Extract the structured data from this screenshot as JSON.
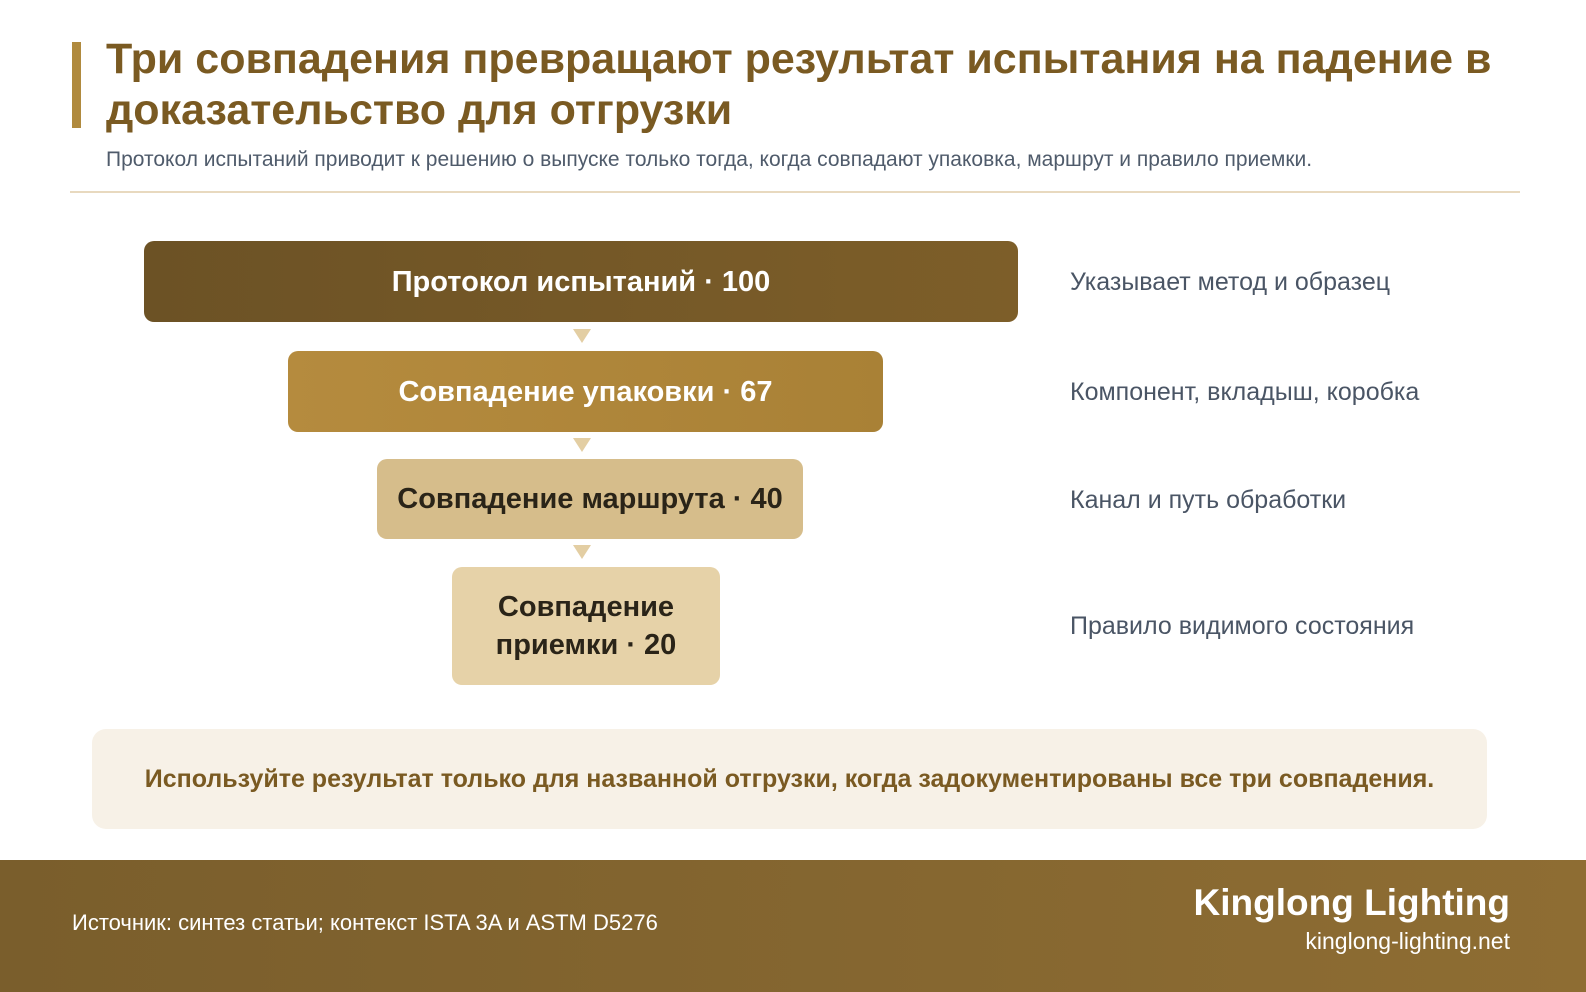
{
  "header": {
    "title": "Три совпадения превращают результат испытания на падение в доказательство для отгрузки",
    "subtitle": "Протокол испытаний приводит к решению о выпуске только тогда, когда совпадают упаковка, маршрут и правило приемки."
  },
  "funnel": {
    "stages": [
      {
        "label": "Протокол испытаний · 100",
        "note": "Указывает метод и образец"
      },
      {
        "label": "Совпадение упаковки · 67",
        "note": "Компонент, вкладыш, коробка"
      },
      {
        "label": "Совпадение маршрута · 40",
        "note": "Канал и путь обработки"
      },
      {
        "label": "Совпадение приемки · 20",
        "note": "Правило видимого состояния"
      }
    ]
  },
  "chart_data": {
    "type": "bar",
    "categories": [
      "Протокол испытаний",
      "Совпадение упаковки",
      "Совпадение маршрута",
      "Совпадение приемки"
    ],
    "values": [
      100,
      67,
      40,
      20
    ]
  },
  "callout": {
    "text": "Используйте результат только для названной отгрузки, когда задокументированы все три совпадения."
  },
  "footer": {
    "source": "Источник: синтез статьи; контекст ISTA 3A и ASTM D5276",
    "brand": "Kinglong Lighting",
    "url": "kinglong-lighting.net"
  },
  "colors": {
    "accent": "#b08a3e",
    "title": "#7a5a22",
    "stage1": "#6c5225",
    "stage2": "#b58b3e",
    "stage3": "#d6bd8b",
    "stage4": "#e6d2a8",
    "footer": "#85652f"
  }
}
